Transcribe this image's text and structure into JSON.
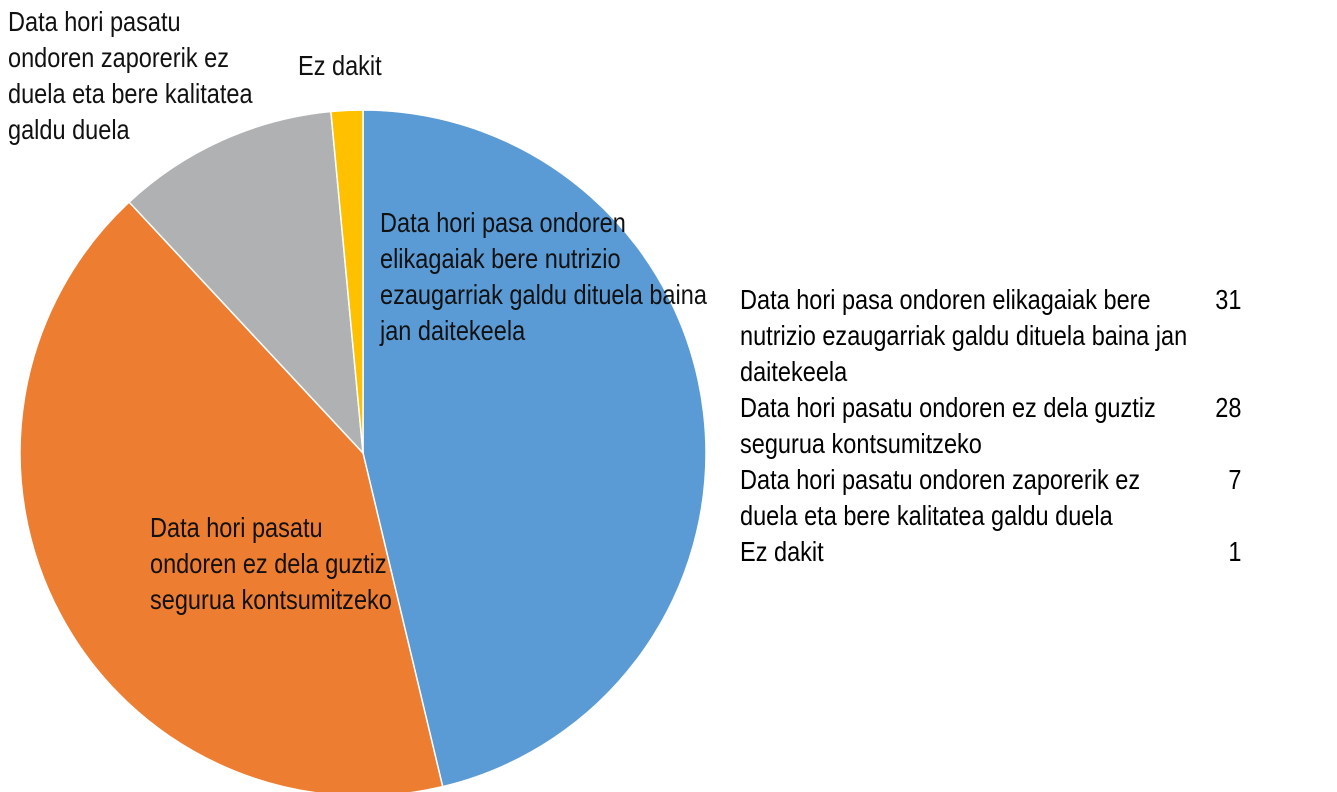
{
  "chart_data": {
    "type": "pie",
    "categories": [
      "Data hori pasa ondoren elikagaiak bere nutrizio ezaugarriak galdu dituela baina jan daitekeela",
      "Data hori pasatu ondoren ez dela guztiz segurua kontsumitzeko",
      "Data hori pasatu ondoren zaporerik ez duela eta bere kalitatea galdu duela",
      "Ez dakit"
    ],
    "values": [
      31,
      28,
      7,
      1
    ],
    "colors": [
      "#5b9bd5",
      "#ed7d31",
      "#b0b1b3",
      "#ffc000"
    ]
  }
}
